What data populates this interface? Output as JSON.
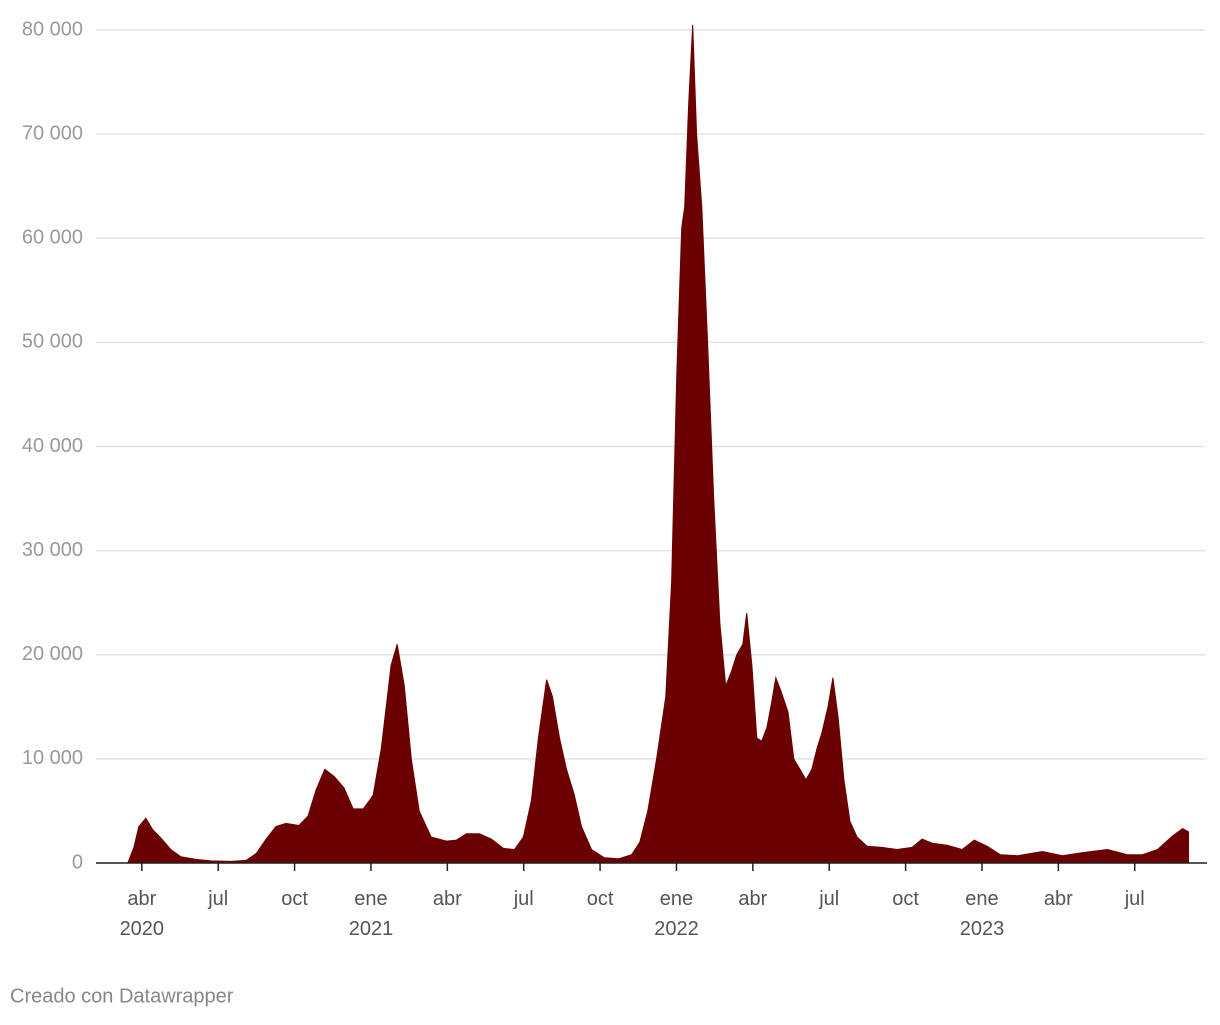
{
  "chart_data": {
    "type": "area",
    "color": "#6b0000",
    "grid": true,
    "credit": "Creado con Datawrapper",
    "x": [
      2020.204,
      2020.224,
      2020.24,
      2020.263,
      2020.286,
      2020.312,
      2020.345,
      2020.378,
      2020.427,
      2020.476,
      2020.542,
      2020.591,
      2020.624,
      2020.657,
      2020.689,
      2020.722,
      2020.764,
      2020.794,
      2020.82,
      2020.849,
      2020.88,
      2020.912,
      2020.942,
      2020.975,
      2021.007,
      2021.034,
      2021.066,
      2021.086,
      2021.109,
      2021.132,
      2021.158,
      2021.197,
      2021.247,
      2021.28,
      2021.312,
      2021.355,
      2021.394,
      2021.434,
      2021.47,
      2021.499,
      2021.525,
      2021.548,
      2021.575,
      2021.594,
      2021.617,
      2021.64,
      2021.666,
      2021.689,
      2021.722,
      2021.764,
      2021.81,
      2021.853,
      2021.88,
      2021.906,
      2021.935,
      2021.965,
      2021.984,
      2022.001,
      2022.017,
      2022.027,
      2022.04,
      2022.053,
      2022.066,
      2022.083,
      2022.102,
      2022.122,
      2022.142,
      2022.161,
      2022.181,
      2022.197,
      2022.217,
      2022.23,
      2022.247,
      2022.263,
      2022.279,
      2022.296,
      2022.312,
      2022.325,
      2022.342,
      2022.365,
      2022.384,
      2022.404,
      2022.424,
      2022.443,
      2022.46,
      2022.476,
      2022.496,
      2022.512,
      2022.529,
      2022.548,
      2022.568,
      2022.591,
      2022.624,
      2022.673,
      2022.722,
      2022.771,
      2022.804,
      2022.837,
      2022.886,
      2022.935,
      2022.975,
      2023.017,
      2023.06,
      2023.116,
      2023.198,
      2023.263,
      2023.329,
      2023.411,
      2023.476,
      2023.525,
      2023.575,
      2023.624,
      2023.657,
      2023.676
    ],
    "values": [
      0,
      1500,
      3500,
      4300,
      3200,
      2400,
      1300,
      600,
      350,
      200,
      150,
      250,
      900,
      2300,
      3500,
      3800,
      3600,
      4500,
      7000,
      9000,
      8300,
      7200,
      5200,
      5200,
      6500,
      11000,
      19000,
      21000,
      17000,
      10000,
      5000,
      2500,
      2100,
      2200,
      2800,
      2800,
      2300,
      1400,
      1300,
      2500,
      6000,
      12000,
      17600,
      16000,
      12000,
      9000,
      6500,
      3500,
      1300,
      500,
      400,
      800,
      2000,
      5000,
      10000,
      16000,
      27000,
      47000,
      61000,
      63000,
      73000,
      80500,
      70000,
      63000,
      50000,
      35000,
      23000,
      17000,
      18500,
      20000,
      21000,
      24000,
      19000,
      12000,
      11700,
      13000,
      15500,
      17800,
      16500,
      14500,
      10000,
      9000,
      8000,
      9000,
      11000,
      12500,
      15000,
      17800,
      14000,
      8000,
      4000,
      2500,
      1600,
      1500,
      1300,
      1500,
      2300,
      1900,
      1700,
      1300,
      2200,
      1600,
      800,
      700,
      1100,
      700,
      1000,
      1300,
      800,
      800,
      1300,
      2600,
      3300,
      3000
    ],
    "xlim": [
      2020.1,
      2023.73
    ],
    "xticks": [
      {
        "value": 2020.25,
        "label": "abr 2020"
      },
      {
        "value": 2020.5,
        "label": "jul"
      },
      {
        "value": 2020.75,
        "label": "oct"
      },
      {
        "value": 2021.0,
        "label": "ene 2021"
      },
      {
        "value": 2021.25,
        "label": "abr"
      },
      {
        "value": 2021.5,
        "label": "jul"
      },
      {
        "value": 2021.75,
        "label": "oct"
      },
      {
        "value": 2022.0,
        "label": "ene 2022"
      },
      {
        "value": 2022.25,
        "label": "abr"
      },
      {
        "value": 2022.5,
        "label": "jul"
      },
      {
        "value": 2022.75,
        "label": "oct"
      },
      {
        "value": 2023.0,
        "label": "ene 2023"
      },
      {
        "value": 2023.25,
        "label": "abr"
      },
      {
        "value": 2023.5,
        "label": "jul"
      }
    ],
    "ylim": [
      0,
      80000
    ],
    "yticks": [
      0,
      {
        "value": 10000,
        "label": "10 000"
      },
      {
        "value": 20000,
        "label": "20 000"
      },
      {
        "value": 30000,
        "label": "30 000"
      },
      {
        "value": 40000,
        "label": "40 000"
      },
      {
        "value": 50000,
        "label": "50 000"
      },
      {
        "value": 60000,
        "label": "60 000"
      },
      {
        "value": 70000,
        "label": "70 000"
      },
      {
        "value": 80000,
        "label": "80 000"
      }
    ]
  }
}
